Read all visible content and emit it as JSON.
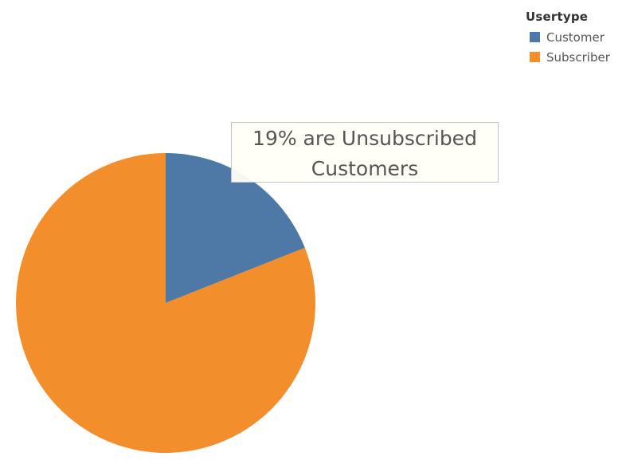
{
  "chart_data": {
    "type": "pie",
    "legend": {
      "title": "Usertype",
      "placement": "top-right"
    },
    "slices": [
      {
        "label": "Customer",
        "value": 19,
        "color": "#4e79a7"
      },
      {
        "label": "Subscriber",
        "value": 81,
        "color": "#f28e2b"
      }
    ],
    "annotation": "19% are Unsubscribed Customers"
  }
}
